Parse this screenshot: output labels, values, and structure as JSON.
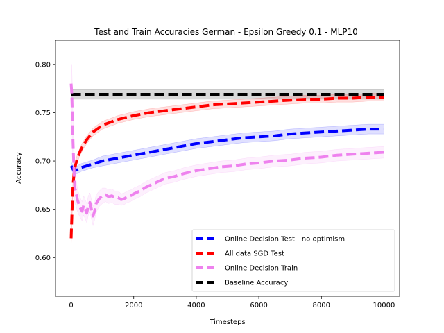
{
  "chart_data": {
    "type": "line",
    "title": "Test and Train Accuracies German - Epsilon Greedy 0.1 - MLP10",
    "xlabel": "Timesteps",
    "ylabel": "Accuracy",
    "xlim": [
      -500,
      10500
    ],
    "ylim": [
      0.56,
      0.825
    ],
    "xticks": [
      0,
      2000,
      4000,
      6000,
      8000,
      10000
    ],
    "xtick_labels": [
      "0",
      "2000",
      "4000",
      "6000",
      "8000",
      "10000"
    ],
    "yticks": [
      0.6,
      0.65,
      0.7,
      0.75,
      0.8
    ],
    "ytick_labels": [
      "0.60",
      "0.65",
      "0.70",
      "0.75",
      "0.80"
    ],
    "grid": false,
    "legend_position": "lower-right",
    "series": [
      {
        "name": "Online Decision Test - no optimism",
        "color": "#0000ff",
        "band_color": "#0000ff",
        "x": [
          0,
          50,
          100,
          200,
          300,
          500,
          700,
          1000,
          1500,
          2000,
          2500,
          3000,
          3500,
          4000,
          4500,
          5000,
          5500,
          6000,
          6500,
          7000,
          7500,
          8000,
          8500,
          9000,
          9500,
          10000
        ],
        "y": [
          0.695,
          0.692,
          0.69,
          0.691,
          0.693,
          0.695,
          0.697,
          0.7,
          0.703,
          0.706,
          0.709,
          0.712,
          0.715,
          0.718,
          0.72,
          0.722,
          0.724,
          0.725,
          0.726,
          0.728,
          0.729,
          0.73,
          0.731,
          0.732,
          0.733,
          0.733
        ],
        "band": [
          0.004,
          0.004,
          0.004,
          0.004,
          0.004,
          0.004,
          0.004,
          0.005,
          0.005,
          0.005,
          0.005,
          0.005,
          0.005,
          0.005,
          0.005,
          0.005,
          0.005,
          0.005,
          0.005,
          0.005,
          0.005,
          0.005,
          0.005,
          0.005,
          0.005,
          0.005
        ]
      },
      {
        "name": "All data SGD Test",
        "color": "#ff0000",
        "band_color": "#ff0000",
        "x": [
          0,
          30,
          60,
          100,
          150,
          200,
          300,
          400,
          500,
          700,
          1000,
          1500,
          2000,
          2500,
          3000,
          3500,
          4000,
          4500,
          5000,
          5500,
          6000,
          6500,
          7000,
          7500,
          8000,
          8500,
          9000,
          9500,
          10000
        ],
        "y": [
          0.62,
          0.65,
          0.675,
          0.69,
          0.697,
          0.703,
          0.711,
          0.717,
          0.722,
          0.73,
          0.737,
          0.743,
          0.747,
          0.75,
          0.752,
          0.754,
          0.756,
          0.758,
          0.759,
          0.76,
          0.761,
          0.762,
          0.763,
          0.764,
          0.764,
          0.765,
          0.765,
          0.766,
          0.766
        ],
        "band": [
          0.01,
          0.008,
          0.006,
          0.004,
          0.004,
          0.004,
          0.004,
          0.004,
          0.004,
          0.004,
          0.004,
          0.004,
          0.004,
          0.004,
          0.004,
          0.004,
          0.004,
          0.004,
          0.004,
          0.004,
          0.004,
          0.004,
          0.004,
          0.004,
          0.004,
          0.004,
          0.004,
          0.004,
          0.004
        ]
      },
      {
        "name": "Online Decision Train",
        "color": "#ee82ee",
        "band_color": "#ee82ee",
        "x": [
          0,
          20,
          40,
          60,
          80,
          100,
          120,
          150,
          200,
          250,
          300,
          350,
          400,
          450,
          500,
          550,
          600,
          650,
          700,
          750,
          800,
          900,
          1000,
          1100,
          1200,
          1300,
          1400,
          1500,
          1600,
          1700,
          1800,
          1900,
          2000,
          2200,
          2400,
          2600,
          2800,
          3000,
          3300,
          3600,
          4000,
          4400,
          4800,
          5200,
          5600,
          6000,
          6500,
          7000,
          7500,
          8000,
          8500,
          9000,
          9500,
          10000
        ],
        "y": [
          0.78,
          0.77,
          0.745,
          0.72,
          0.7,
          0.685,
          0.672,
          0.668,
          0.66,
          0.655,
          0.651,
          0.648,
          0.654,
          0.65,
          0.646,
          0.654,
          0.657,
          0.65,
          0.643,
          0.648,
          0.656,
          0.661,
          0.664,
          0.665,
          0.663,
          0.664,
          0.662,
          0.662,
          0.66,
          0.661,
          0.663,
          0.664,
          0.666,
          0.669,
          0.673,
          0.676,
          0.679,
          0.682,
          0.684,
          0.687,
          0.69,
          0.692,
          0.694,
          0.695,
          0.697,
          0.698,
          0.7,
          0.701,
          0.703,
          0.704,
          0.706,
          0.707,
          0.708,
          0.709
        ],
        "band": [
          0.02,
          0.03,
          0.03,
          0.025,
          0.02,
          0.018,
          0.016,
          0.014,
          0.012,
          0.011,
          0.01,
          0.01,
          0.01,
          0.01,
          0.01,
          0.01,
          0.01,
          0.01,
          0.01,
          0.009,
          0.009,
          0.008,
          0.008,
          0.007,
          0.007,
          0.007,
          0.007,
          0.007,
          0.006,
          0.006,
          0.006,
          0.006,
          0.006,
          0.006,
          0.006,
          0.006,
          0.006,
          0.006,
          0.006,
          0.006,
          0.006,
          0.006,
          0.006,
          0.006,
          0.006,
          0.006,
          0.006,
          0.006,
          0.006,
          0.006,
          0.006,
          0.006,
          0.006,
          0.006
        ]
      },
      {
        "name": "Baseline Accuracy",
        "color": "#000000",
        "band_color": "#000000",
        "x": [
          0,
          10000
        ],
        "y": [
          0.769,
          0.769
        ],
        "band": [
          0.005,
          0.005
        ]
      }
    ]
  }
}
